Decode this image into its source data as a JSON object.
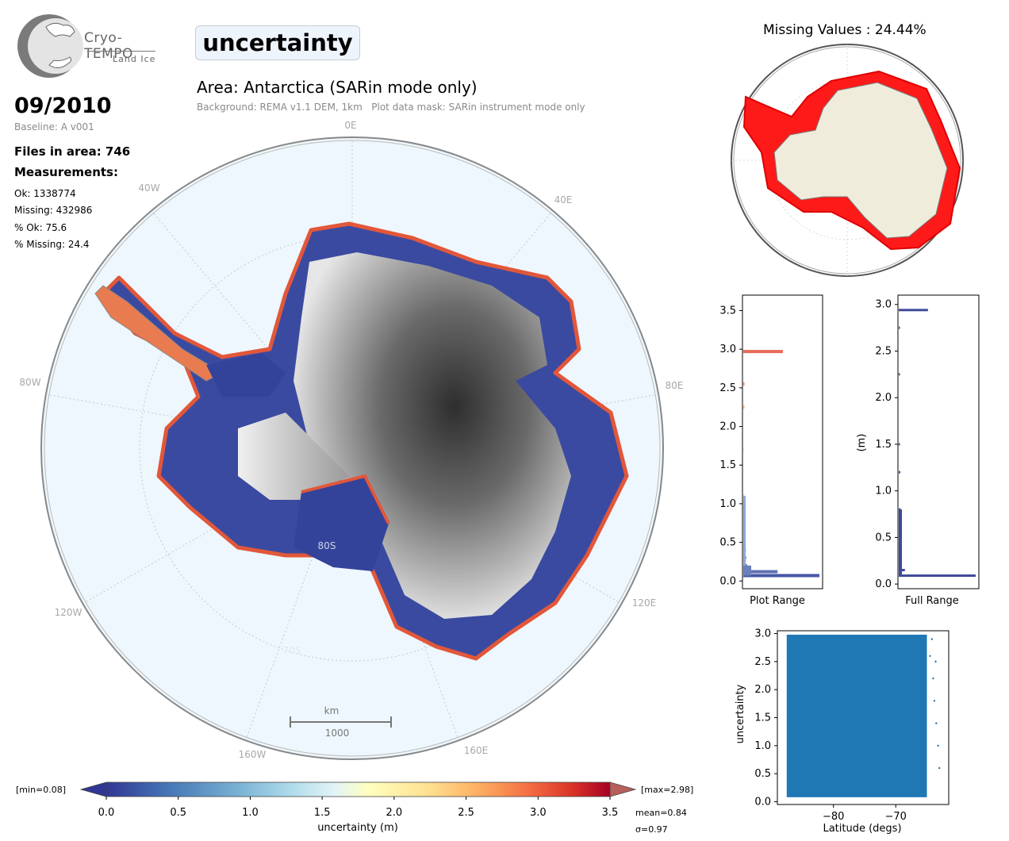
{
  "logo": {
    "name": "Cryo-TEMPO",
    "subtitle": "Land Ice"
  },
  "parameter_title": "uncertainty",
  "area_title": "Area: Antarctica (SARin mode only)",
  "background_note": "Background: REMA v1.1 DEM, 1km   Plot data mask: SARin instrument mode only",
  "date": "09/2010",
  "baseline": "Baseline: A v001",
  "files_in_area": "Files in area: 746",
  "measurements_heading": "Measurements:",
  "stats": {
    "ok": "Ok: 1338774",
    "missing": "Missing: 432986",
    "pct_ok": "% Ok: 75.6",
    "pct_missing": "% Missing: 24.4"
  },
  "colors": {
    "low": "#313695",
    "mid": "#ffffbf",
    "high": "#a50026",
    "missing": "#ff0000",
    "land": "#efecdc",
    "ocean": "#eef7fd",
    "scatter": "#1f77b4"
  },
  "map": {
    "lon_labels": [
      "0E",
      "40E",
      "80E",
      "120E",
      "160E",
      "160W",
      "120W",
      "80W",
      "40W"
    ],
    "lat_labels": [
      "80S",
      "70S"
    ],
    "scale_unit": "km",
    "scale_value": "1000"
  },
  "missing_title": "Missing Values : 24.44%",
  "colorbar": {
    "label": "uncertainty (m)",
    "min_label": "[min=0.08]",
    "max_label": "[max=2.98]",
    "mean": "mean=0.84",
    "sigma": "σ=0.97",
    "ticks": [
      "0.0",
      "0.5",
      "1.0",
      "1.5",
      "2.0",
      "2.5",
      "3.0",
      "3.5"
    ]
  },
  "hist_plot_range": {
    "xlabel": "Plot Range",
    "yticks": [
      "0.0",
      "0.5",
      "1.0",
      "1.5",
      "2.0",
      "2.5",
      "3.0",
      "3.5"
    ]
  },
  "hist_full_range": {
    "xlabel": "Full Range",
    "ylabel": "(m)",
    "yticks": [
      "0.0",
      "0.5",
      "1.0",
      "1.5",
      "2.0",
      "2.5",
      "3.0"
    ]
  },
  "chart_data": [
    {
      "type": "bar",
      "orientation": "horizontal",
      "title": "",
      "xlabel": "Plot Range",
      "ylabel": "",
      "ylim": [
        -0.1,
        3.7
      ],
      "bins": [
        {
          "y": 0.07,
          "count": 1.0,
          "color": "#4856a6"
        },
        {
          "y": 0.12,
          "count": 0.45,
          "color": "#5e6fb2"
        },
        {
          "y": 0.2,
          "count": 0.05,
          "color": "#6b80bb"
        },
        {
          "y": 0.3,
          "count": 0.04,
          "color": "#7a90c4"
        },
        {
          "y": 0.4,
          "count": 0.035,
          "color": "#889fcc"
        },
        {
          "y": 0.55,
          "count": 0.03,
          "color": "#97afd6"
        },
        {
          "y": 0.7,
          "count": 0.025,
          "color": "#a5bedd"
        },
        {
          "y": 0.9,
          "count": 0.02,
          "color": "#b6cfe4"
        },
        {
          "y": 1.1,
          "count": 0.015,
          "color": "#c8e0ec"
        },
        {
          "y": 1.7,
          "count": 0.01,
          "color": "#e8f2d4"
        },
        {
          "y": 2.25,
          "count": 0.01,
          "color": "#fbb56a"
        },
        {
          "y": 2.55,
          "count": 0.01,
          "color": "#f58b52"
        },
        {
          "y": 2.97,
          "count": 0.52,
          "color": "#e86b5a"
        }
      ]
    },
    {
      "type": "bar",
      "orientation": "horizontal",
      "title": "",
      "xlabel": "Full Range",
      "ylabel": "(m)",
      "ylim": [
        -0.05,
        3.1
      ],
      "bins": [
        {
          "y": 0.09,
          "count": 1.0
        },
        {
          "y": 0.15,
          "count": 0.08
        },
        {
          "y": 0.3,
          "count": 0.04
        },
        {
          "y": 0.5,
          "count": 0.03
        },
        {
          "y": 0.8,
          "count": 0.025
        },
        {
          "y": 1.2,
          "count": 0.02
        },
        {
          "y": 1.5,
          "count": 0.015
        },
        {
          "y": 2.25,
          "count": 0.015
        },
        {
          "y": 2.75,
          "count": 0.01
        },
        {
          "y": 2.94,
          "count": 0.38
        }
      ]
    },
    {
      "type": "scatter",
      "title": "",
      "xlabel": "Latitude (degs)",
      "ylabel": "uncertainty",
      "xlim": [
        -89,
        -61.5
      ],
      "ylim": [
        -0.05,
        3.05
      ],
      "xticks": [
        "−80",
        "−70"
      ],
      "yticks": [
        "0.0",
        "0.5",
        "1.0",
        "1.5",
        "2.0",
        "2.5",
        "3.0"
      ],
      "dense_region": {
        "x": [
          -87.5,
          -65
        ],
        "y": [
          0.08,
          2.98
        ]
      },
      "sparse_points": [
        [
          -64.5,
          2.6
        ],
        [
          -64,
          2.2
        ],
        [
          -63.8,
          1.8
        ],
        [
          -63.5,
          1.4
        ],
        [
          -63.2,
          1.0
        ],
        [
          -63,
          0.6
        ],
        [
          -64.2,
          2.9
        ],
        [
          -63.6,
          2.5
        ]
      ]
    }
  ]
}
